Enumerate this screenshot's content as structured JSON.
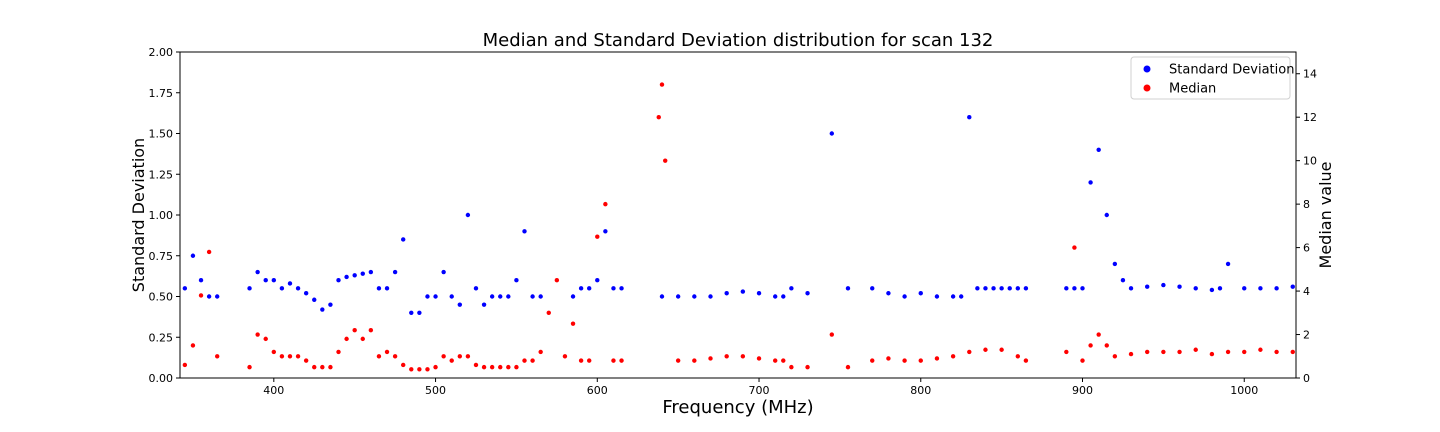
{
  "chart_data": {
    "type": "scatter",
    "title": "Median and Standard Deviation distribution for scan 132",
    "xlabel": "Frequency (MHz)",
    "ylabel": "Standard Deviation",
    "y2label": "Median value",
    "xlim": [
      342,
      1032
    ],
    "ylim": [
      0,
      2.0
    ],
    "y2lim": [
      0,
      15
    ],
    "x_ticks": [
      400,
      500,
      600,
      700,
      800,
      900,
      1000
    ],
    "y_ticks": [
      0.0,
      0.25,
      0.5,
      0.75,
      1.0,
      1.25,
      1.5,
      1.75,
      2.0
    ],
    "y2_ticks": [
      0,
      2,
      4,
      6,
      8,
      10,
      12,
      14
    ],
    "grid": false,
    "legend_position": "top-right",
    "series": [
      {
        "name": "Standard Deviation",
        "axis": "left",
        "color": "#0000ff",
        "x": [
          345,
          350,
          355,
          360,
          365,
          385,
          390,
          395,
          400,
          405,
          410,
          415,
          420,
          425,
          430,
          435,
          440,
          445,
          450,
          455,
          460,
          465,
          470,
          475,
          480,
          485,
          490,
          495,
          500,
          505,
          510,
          515,
          520,
          525,
          530,
          535,
          540,
          545,
          550,
          555,
          560,
          565,
          585,
          590,
          595,
          600,
          605,
          610,
          615,
          640,
          650,
          660,
          670,
          680,
          690,
          700,
          710,
          715,
          720,
          730,
          745,
          755,
          770,
          780,
          790,
          800,
          810,
          820,
          825,
          830,
          835,
          840,
          845,
          850,
          855,
          860,
          865,
          890,
          895,
          900,
          905,
          910,
          915,
          920,
          925,
          930,
          940,
          950,
          960,
          970,
          980,
          985,
          990,
          1000,
          1010,
          1020,
          1030
        ],
        "y": [
          0.55,
          0.75,
          0.6,
          0.5,
          0.5,
          0.55,
          0.65,
          0.6,
          0.6,
          0.55,
          0.58,
          0.55,
          0.52,
          0.48,
          0.42,
          0.45,
          0.6,
          0.62,
          0.63,
          0.64,
          0.65,
          0.55,
          0.55,
          0.65,
          0.85,
          0.4,
          0.4,
          0.5,
          0.5,
          0.65,
          0.5,
          0.45,
          1.0,
          0.55,
          0.45,
          0.5,
          0.5,
          0.5,
          0.6,
          0.9,
          0.5,
          0.5,
          0.5,
          0.55,
          0.55,
          0.6,
          0.9,
          0.55,
          0.55,
          0.5,
          0.5,
          0.5,
          0.5,
          0.52,
          0.53,
          0.52,
          0.5,
          0.5,
          0.55,
          0.52,
          1.5,
          0.55,
          0.55,
          0.52,
          0.5,
          0.52,
          0.5,
          0.5,
          0.5,
          1.6,
          0.55,
          0.55,
          0.55,
          0.55,
          0.55,
          0.55,
          0.55,
          0.55,
          0.55,
          0.55,
          1.2,
          1.4,
          1.0,
          0.7,
          0.6,
          0.55,
          0.56,
          0.57,
          0.56,
          0.55,
          0.54,
          0.55,
          0.7,
          0.55,
          0.55,
          0.55,
          0.56
        ]
      },
      {
        "name": "Median",
        "axis": "right",
        "color": "#ff0000",
        "x": [
          345,
          350,
          355,
          360,
          365,
          385,
          390,
          395,
          400,
          405,
          410,
          415,
          420,
          425,
          430,
          435,
          440,
          445,
          450,
          455,
          460,
          465,
          470,
          475,
          480,
          485,
          490,
          495,
          500,
          505,
          510,
          515,
          520,
          525,
          530,
          535,
          540,
          545,
          550,
          555,
          560,
          565,
          570,
          575,
          580,
          585,
          590,
          595,
          600,
          605,
          610,
          615,
          638,
          640,
          642,
          650,
          660,
          670,
          680,
          690,
          700,
          710,
          715,
          720,
          730,
          745,
          755,
          770,
          780,
          790,
          800,
          810,
          820,
          830,
          840,
          850,
          860,
          865,
          890,
          895,
          900,
          905,
          910,
          915,
          920,
          930,
          940,
          950,
          960,
          970,
          980,
          990,
          1000,
          1010,
          1020,
          1030
        ],
        "y": [
          0.6,
          1.5,
          3.8,
          5.8,
          1.0,
          0.5,
          2.0,
          1.8,
          1.2,
          1.0,
          1.0,
          1.0,
          0.8,
          0.5,
          0.5,
          0.5,
          1.2,
          1.8,
          2.2,
          1.8,
          2.2,
          1.0,
          1.2,
          1.0,
          0.6,
          0.4,
          0.4,
          0.4,
          0.5,
          1.0,
          0.8,
          1.0,
          1.0,
          0.6,
          0.5,
          0.5,
          0.5,
          0.5,
          0.5,
          0.8,
          0.8,
          1.2,
          3.0,
          4.5,
          1.0,
          2.5,
          0.8,
          0.8,
          6.5,
          8.0,
          0.8,
          0.8,
          12.0,
          13.5,
          10.0,
          0.8,
          0.8,
          0.9,
          1.0,
          1.0,
          0.9,
          0.8,
          0.8,
          0.5,
          0.5,
          2.0,
          0.5,
          0.8,
          0.9,
          0.8,
          0.8,
          0.9,
          1.0,
          1.2,
          1.3,
          1.3,
          1.0,
          0.8,
          1.2,
          6.0,
          0.8,
          1.5,
          2.0,
          1.5,
          1.0,
          1.1,
          1.2,
          1.2,
          1.2,
          1.3,
          1.1,
          1.2,
          1.2,
          1.3,
          1.2,
          1.2
        ]
      }
    ]
  }
}
